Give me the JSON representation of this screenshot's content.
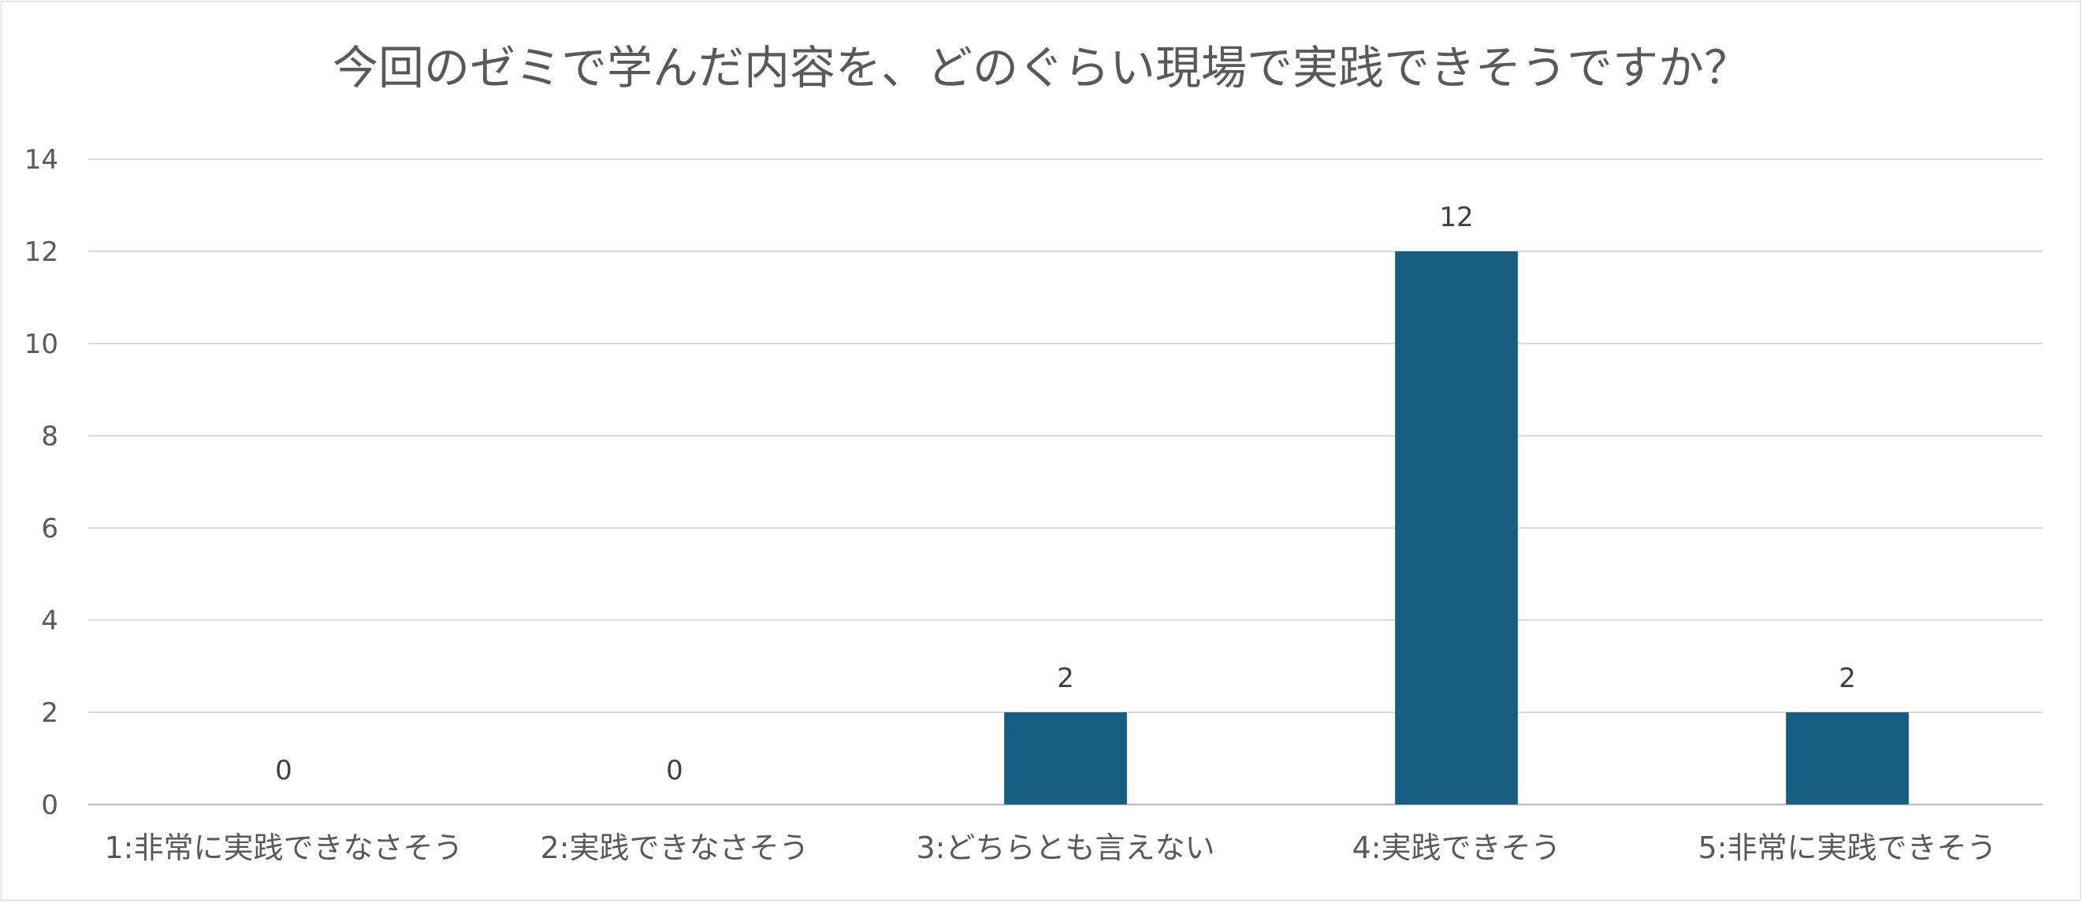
{
  "chart_data": {
    "type": "bar",
    "title": "今回のゼミで学んだ内容を、どのぐらい現場で実践できそうですか？",
    "xlabel": "",
    "ylabel": "",
    "categories": [
      "1:非常に実践できなさそう",
      "2:実践できなさそう",
      "3:どちらとも言えない",
      "4:実践できそう",
      "5:非常に実践できそう"
    ],
    "values": [
      0,
      0,
      2,
      12,
      2
    ],
    "data_labels": [
      "0",
      "0",
      "2",
      "12",
      "2"
    ],
    "ylim": [
      0,
      14
    ],
    "y_ticks": [
      0,
      2,
      4,
      6,
      8,
      10,
      12,
      14
    ],
    "grid": true,
    "legend": "none",
    "colors": {
      "bar": "#175F82",
      "grid": "#d9d9d9",
      "axis": "#bfbfbf",
      "tick_text": "#595959",
      "title_text": "#595959",
      "data_label_text": "#404040"
    }
  }
}
